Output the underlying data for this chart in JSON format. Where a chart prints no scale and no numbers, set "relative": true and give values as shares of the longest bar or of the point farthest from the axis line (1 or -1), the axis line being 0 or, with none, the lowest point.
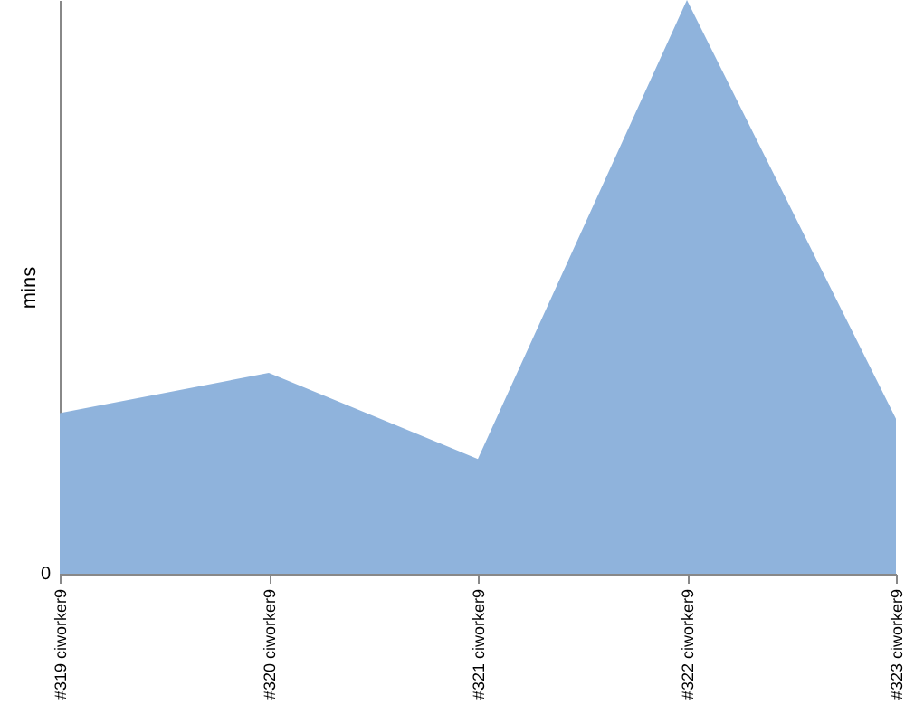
{
  "chart_data": {
    "type": "area",
    "ylabel": "mins",
    "relative": true,
    "annotations": [
      "0"
    ],
    "categories": [
      "#319 ciworker9",
      "#320 ciworker9",
      "#321 ciworker9",
      "#322 ciworker9",
      "#323 ciworker9"
    ],
    "series": [
      {
        "color": "#8fb3dc",
        "values": [
          0.28,
          0.35,
          0.2,
          1,
          0.27
        ]
      }
    ]
  }
}
